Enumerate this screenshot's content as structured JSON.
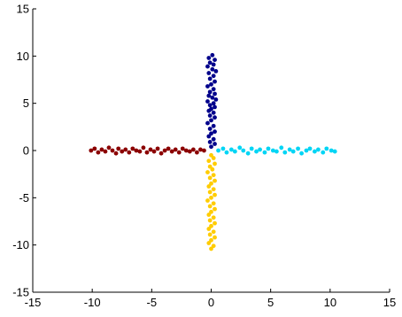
{
  "chart_data": {
    "type": "scatter",
    "title": "",
    "xlabel": "",
    "ylabel": "",
    "xlim": [
      -15,
      15
    ],
    "ylim": [
      -15,
      15
    ],
    "x_ticks": [
      -15,
      -10,
      -5,
      0,
      5,
      10,
      15
    ],
    "y_ticks": [
      -15,
      -10,
      -5,
      0,
      5,
      10,
      15
    ],
    "x_tick_labels": [
      "-15",
      "-10",
      "-5",
      "0",
      "5",
      "10",
      "15"
    ],
    "y_tick_labels": [
      "-15",
      "-10",
      "-5",
      "0",
      "5",
      "10",
      "15"
    ],
    "grid": false,
    "legend": "none",
    "series": [
      {
        "color": "#00008b",
        "points": [
          [
            0.1,
            10.1
          ],
          [
            -0.2,
            9.8
          ],
          [
            0.3,
            9.6
          ],
          [
            -0.1,
            9.3
          ],
          [
            0.2,
            9.1
          ],
          [
            -0.3,
            8.9
          ],
          [
            0.1,
            8.6
          ],
          [
            0.4,
            8.4
          ],
          [
            -0.2,
            8.2
          ],
          [
            0.2,
            7.9
          ],
          [
            -0.1,
            7.6
          ],
          [
            0.3,
            7.3
          ],
          [
            0.0,
            7.0
          ],
          [
            -0.3,
            6.8
          ],
          [
            0.2,
            6.5
          ],
          [
            -0.1,
            6.2
          ],
          [
            0.3,
            6.0
          ],
          [
            -0.2,
            5.8
          ],
          [
            0.1,
            5.6
          ],
          [
            0.4,
            5.4
          ],
          [
            -0.3,
            5.2
          ],
          [
            0.2,
            5.0
          ],
          [
            -0.1,
            4.8
          ],
          [
            0.3,
            4.6
          ],
          [
            0.0,
            4.4
          ],
          [
            -0.2,
            4.2
          ],
          [
            0.2,
            4.0
          ],
          [
            -0.1,
            3.7
          ],
          [
            0.3,
            3.5
          ],
          [
            0.0,
            3.2
          ],
          [
            -0.3,
            2.9
          ],
          [
            0.2,
            2.6
          ],
          [
            -0.1,
            2.3
          ],
          [
            0.3,
            2.0
          ],
          [
            0.0,
            1.8
          ],
          [
            -0.2,
            1.5
          ],
          [
            0.2,
            1.2
          ],
          [
            -0.1,
            0.9
          ],
          [
            0.3,
            0.7
          ],
          [
            0.0,
            0.4
          ]
        ]
      },
      {
        "color": "#8b0000",
        "points": [
          [
            -10.1,
            0.0
          ],
          [
            -9.8,
            0.2
          ],
          [
            -9.5,
            -0.2
          ],
          [
            -9.2,
            0.1
          ],
          [
            -8.9,
            -0.1
          ],
          [
            -8.6,
            0.3
          ],
          [
            -8.3,
            0.0
          ],
          [
            -8.0,
            -0.3
          ],
          [
            -7.8,
            0.2
          ],
          [
            -7.5,
            -0.1
          ],
          [
            -7.2,
            0.1
          ],
          [
            -6.9,
            -0.2
          ],
          [
            -6.6,
            0.2
          ],
          [
            -6.3,
            0.0
          ],
          [
            -6.0,
            -0.1
          ],
          [
            -5.7,
            0.3
          ],
          [
            -5.4,
            -0.2
          ],
          [
            -5.1,
            0.1
          ],
          [
            -4.8,
            -0.1
          ],
          [
            -4.5,
            0.2
          ],
          [
            -4.2,
            -0.3
          ],
          [
            -3.9,
            0.0
          ],
          [
            -3.6,
            0.2
          ],
          [
            -3.3,
            -0.1
          ],
          [
            -3.0,
            0.1
          ],
          [
            -2.7,
            -0.2
          ],
          [
            -2.4,
            0.2
          ],
          [
            -2.1,
            0.0
          ],
          [
            -1.8,
            -0.1
          ],
          [
            -1.5,
            0.1
          ],
          [
            -1.2,
            -0.2
          ],
          [
            -0.9,
            0.1
          ],
          [
            -0.6,
            0.0
          ]
        ]
      },
      {
        "color": "#00d5f5",
        "points": [
          [
            0.6,
            0.0
          ],
          [
            1.0,
            0.2
          ],
          [
            1.3,
            -0.2
          ],
          [
            1.7,
            0.1
          ],
          [
            2.0,
            -0.1
          ],
          [
            2.4,
            0.3
          ],
          [
            2.7,
            0.0
          ],
          [
            3.1,
            -0.3
          ],
          [
            3.4,
            0.2
          ],
          [
            3.8,
            -0.1
          ],
          [
            4.1,
            0.1
          ],
          [
            4.5,
            -0.2
          ],
          [
            4.8,
            0.2
          ],
          [
            5.2,
            0.0
          ],
          [
            5.5,
            -0.1
          ],
          [
            5.9,
            0.3
          ],
          [
            6.2,
            -0.2
          ],
          [
            6.6,
            0.1
          ],
          [
            6.9,
            -0.1
          ],
          [
            7.3,
            0.2
          ],
          [
            7.6,
            -0.3
          ],
          [
            8.0,
            0.0
          ],
          [
            8.3,
            0.2
          ],
          [
            8.7,
            -0.1
          ],
          [
            9.0,
            0.1
          ],
          [
            9.4,
            -0.2
          ],
          [
            9.7,
            0.2
          ],
          [
            10.1,
            0.0
          ],
          [
            10.4,
            -0.1
          ]
        ]
      },
      {
        "color": "#ffcc00",
        "points": [
          [
            0.0,
            -0.5
          ],
          [
            0.2,
            -0.8
          ],
          [
            -0.2,
            -1.1
          ],
          [
            0.3,
            -1.4
          ],
          [
            -0.1,
            -1.7
          ],
          [
            0.1,
            -2.0
          ],
          [
            -0.3,
            -2.3
          ],
          [
            0.2,
            -2.6
          ],
          [
            -0.1,
            -2.9
          ],
          [
            0.3,
            -3.2
          ],
          [
            0.0,
            -3.5
          ],
          [
            -0.2,
            -3.8
          ],
          [
            0.2,
            -4.1
          ],
          [
            -0.1,
            -4.4
          ],
          [
            0.3,
            -4.7
          ],
          [
            0.0,
            -5.0
          ],
          [
            -0.3,
            -5.3
          ],
          [
            0.2,
            -5.6
          ],
          [
            -0.1,
            -5.9
          ],
          [
            0.3,
            -6.2
          ],
          [
            0.0,
            -6.5
          ],
          [
            -0.2,
            -6.8
          ],
          [
            0.2,
            -7.1
          ],
          [
            -0.1,
            -7.4
          ],
          [
            0.3,
            -7.7
          ],
          [
            0.0,
            -8.0
          ],
          [
            -0.2,
            -8.3
          ],
          [
            0.2,
            -8.6
          ],
          [
            -0.1,
            -8.9
          ],
          [
            0.3,
            -9.2
          ],
          [
            0.0,
            -9.5
          ],
          [
            -0.2,
            -9.8
          ],
          [
            0.2,
            -10.1
          ],
          [
            0.0,
            -10.4
          ]
        ]
      }
    ]
  }
}
